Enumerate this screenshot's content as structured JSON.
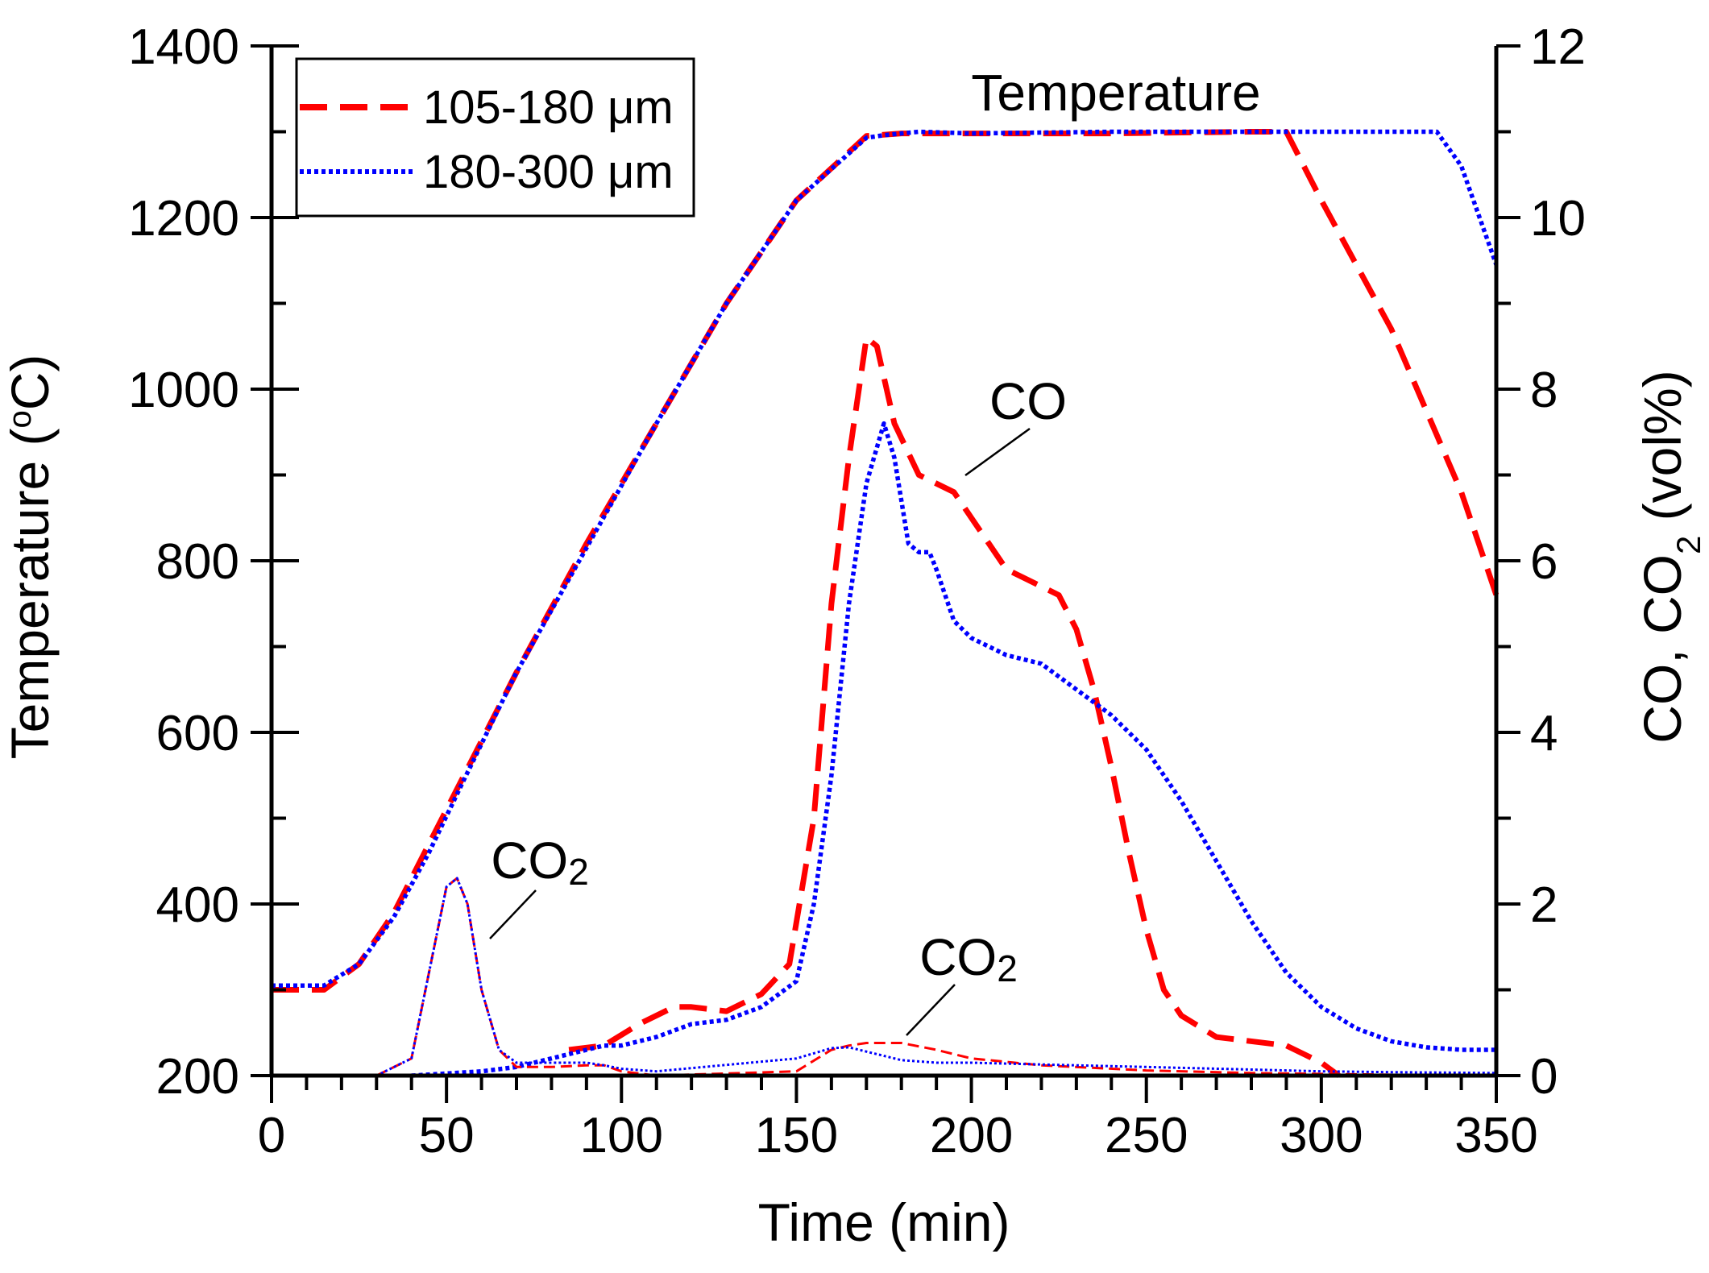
{
  "chart_data": {
    "type": "line",
    "title": "",
    "xlabel": "Time (min)",
    "ylabel_left": "Temperature (°C)",
    "ylabel_left_parts": [
      "Temperature (",
      "o",
      "C)"
    ],
    "ylabel_right": "CO, CO2 (vol%)",
    "ylabel_right_parts": [
      "CO, CO",
      "2",
      " (vol%)"
    ],
    "xlim": [
      0,
      350
    ],
    "ylim_left": [
      200,
      1400
    ],
    "ylim_right": [
      0,
      12
    ],
    "x_ticks": [
      0,
      50,
      100,
      150,
      200,
      250,
      300,
      350
    ],
    "y_left_ticks": [
      200,
      400,
      600,
      800,
      1000,
      1200,
      1400
    ],
    "y_right_ticks": [
      0,
      2,
      4,
      6,
      8,
      10,
      12
    ],
    "grid": false,
    "legend_position": "top-left",
    "legend": [
      {
        "label": "105-180 μm",
        "color": "#ff0000",
        "style": "dashed"
      },
      {
        "label": "180-300 μm",
        "color": "#0000ff",
        "style": "dotted"
      }
    ],
    "annotations": {
      "temperature": "Temperature",
      "co": "CO",
      "co2_left": {
        "base": "CO",
        "sub": "2"
      },
      "co2_right": {
        "base": "CO",
        "sub": "2"
      }
    },
    "series": [
      {
        "name": "Temperature 105-180 μm",
        "axis": "left",
        "color": "#ff0000",
        "style": "dashed",
        "x": [
          0,
          15,
          25,
          35,
          45,
          55,
          70,
          90,
          110,
          130,
          150,
          170,
          180,
          200,
          240,
          280,
          290,
          300,
          320,
          340,
          350
        ],
        "y": [
          300,
          300,
          330,
          390,
          470,
          550,
          670,
          820,
          960,
          1100,
          1220,
          1295,
          1298,
          1298,
          1298,
          1300,
          1300,
          1220,
          1070,
          880,
          760
        ]
      },
      {
        "name": "Temperature 180-300 μm",
        "axis": "left",
        "color": "#0000ff",
        "style": "dotted",
        "x": [
          0,
          15,
          25,
          35,
          45,
          55,
          70,
          90,
          110,
          130,
          150,
          170,
          175,
          185,
          200,
          240,
          280,
          300,
          320,
          333,
          340,
          350
        ],
        "y": [
          305,
          305,
          330,
          385,
          460,
          545,
          670,
          815,
          960,
          1100,
          1220,
          1293,
          1296,
          1300,
          1298,
          1300,
          1300,
          1300,
          1300,
          1300,
          1260,
          1145
        ]
      },
      {
        "name": "CO 105-180 μm",
        "axis": "right",
        "color": "#ff0000",
        "style": "dashed",
        "x": [
          85,
          95,
          105,
          115,
          120,
          130,
          140,
          148,
          155,
          160,
          165,
          170,
          173,
          178,
          185,
          195,
          200,
          210,
          220,
          225,
          230,
          235,
          240,
          245,
          250,
          255,
          260,
          270,
          290,
          300,
          305
        ],
        "y": [
          0.3,
          0.35,
          0.6,
          0.8,
          0.8,
          0.75,
          0.95,
          1.3,
          3.0,
          5.5,
          7.2,
          8.6,
          8.5,
          7.6,
          7.0,
          6.8,
          6.5,
          5.9,
          5.7,
          5.6,
          5.2,
          4.5,
          3.6,
          2.6,
          1.7,
          1.0,
          0.7,
          0.45,
          0.35,
          0.15,
          0.0
        ]
      },
      {
        "name": "CO 180-300 μm",
        "axis": "right",
        "color": "#0000ff",
        "style": "dotted",
        "x": [
          40,
          60,
          70,
          80,
          90,
          95,
          100,
          110,
          120,
          130,
          140,
          150,
          155,
          160,
          165,
          170,
          175,
          178,
          182,
          185,
          188,
          190,
          195,
          200,
          210,
          220,
          230,
          240,
          250,
          260,
          270,
          280,
          290,
          300,
          310,
          320,
          330,
          340,
          350
        ],
        "y": [
          0.0,
          0.05,
          0.1,
          0.2,
          0.3,
          0.35,
          0.35,
          0.45,
          0.6,
          0.65,
          0.8,
          1.1,
          2.0,
          3.5,
          5.5,
          6.9,
          7.6,
          7.2,
          6.2,
          6.1,
          6.1,
          5.9,
          5.3,
          5.1,
          4.9,
          4.8,
          4.5,
          4.2,
          3.8,
          3.2,
          2.5,
          1.8,
          1.2,
          0.8,
          0.55,
          0.4,
          0.33,
          0.3,
          0.3
        ]
      },
      {
        "name": "CO2 105-180 μm",
        "axis": "right",
        "color": "#ff0000",
        "style": "thin-dashed",
        "x": [
          30,
          40,
          45,
          50,
          53,
          56,
          60,
          65,
          70,
          80,
          90,
          95,
          100,
          110,
          150,
          160,
          165,
          170,
          180,
          190,
          200,
          220,
          250,
          280,
          300,
          320,
          350
        ],
        "y": [
          0.0,
          0.2,
          1.2,
          2.2,
          2.3,
          2.0,
          1.0,
          0.3,
          0.1,
          0.1,
          0.12,
          0.12,
          0.05,
          0.0,
          0.05,
          0.3,
          0.35,
          0.38,
          0.38,
          0.3,
          0.2,
          0.12,
          0.06,
          0.03,
          0.02,
          0.01,
          0.0
        ]
      },
      {
        "name": "CO2 180-300 μm",
        "axis": "right",
        "color": "#0000ff",
        "style": "thin-dotted",
        "x": [
          30,
          40,
          45,
          50,
          53,
          56,
          60,
          65,
          70,
          80,
          90,
          95,
          100,
          110,
          150,
          160,
          165,
          170,
          180,
          190,
          200,
          220,
          250,
          280,
          300,
          320,
          350
        ],
        "y": [
          0.0,
          0.2,
          1.2,
          2.2,
          2.3,
          2.0,
          1.0,
          0.3,
          0.15,
          0.15,
          0.15,
          0.12,
          0.08,
          0.05,
          0.2,
          0.32,
          0.33,
          0.28,
          0.18,
          0.15,
          0.15,
          0.13,
          0.1,
          0.07,
          0.05,
          0.04,
          0.03
        ]
      }
    ]
  }
}
